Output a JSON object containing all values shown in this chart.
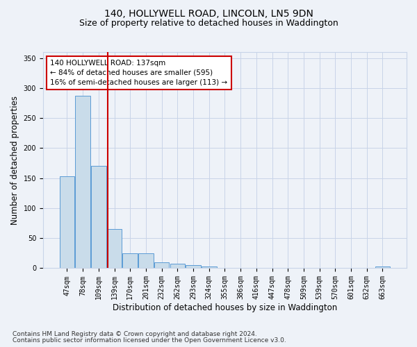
{
  "title1": "140, HOLLYWELL ROAD, LINCOLN, LN5 9DN",
  "title2": "Size of property relative to detached houses in Waddington",
  "xlabel": "Distribution of detached houses by size in Waddington",
  "ylabel": "Number of detached properties",
  "categories": [
    "47sqm",
    "78sqm",
    "109sqm",
    "139sqm",
    "170sqm",
    "201sqm",
    "232sqm",
    "262sqm",
    "293sqm",
    "324sqm",
    "355sqm",
    "386sqm",
    "416sqm",
    "447sqm",
    "478sqm",
    "509sqm",
    "539sqm",
    "570sqm",
    "601sqm",
    "632sqm",
    "663sqm"
  ],
  "values": [
    153,
    287,
    170,
    65,
    25,
    25,
    10,
    8,
    5,
    3,
    0,
    0,
    0,
    0,
    0,
    0,
    0,
    0,
    0,
    0,
    3
  ],
  "bar_color": "#c9dcea",
  "bar_edge_color": "#5b9bd5",
  "ylim": [
    0,
    360
  ],
  "yticks": [
    0,
    50,
    100,
    150,
    200,
    250,
    300,
    350
  ],
  "vline_x": 2.58,
  "vline_color": "#cc0000",
  "annotation_text": "140 HOLLYWELL ROAD: 137sqm\n← 84% of detached houses are smaller (595)\n16% of semi-detached houses are larger (113) →",
  "footer1": "Contains HM Land Registry data © Crown copyright and database right 2024.",
  "footer2": "Contains public sector information licensed under the Open Government Licence v3.0.",
  "background_color": "#eef2f8",
  "plot_background": "#eef2f8",
  "grid_color": "#c8d4e8",
  "title_fontsize": 10,
  "subtitle_fontsize": 9,
  "axis_label_fontsize": 8.5,
  "tick_fontsize": 7,
  "footer_fontsize": 6.5,
  "annotation_fontsize": 7.5
}
